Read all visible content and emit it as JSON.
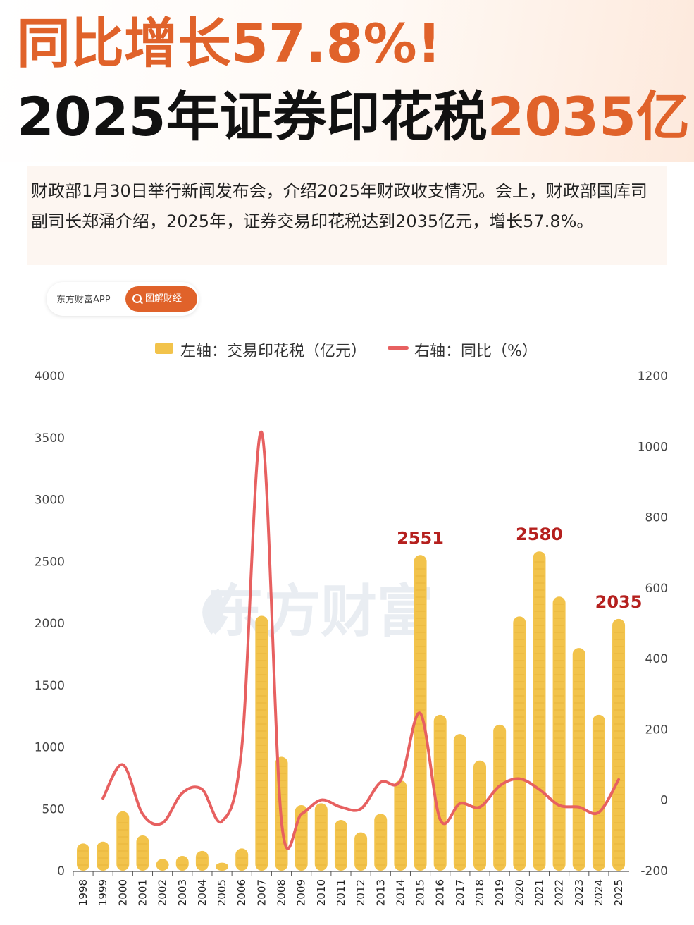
{
  "header": {
    "title_line1": "同比增长57.8%!",
    "title_line2_main": "2025年证券印花税",
    "title_line2_highlight": "2035亿"
  },
  "summary": {
    "text": "财政部1月30日举行新闻发布会，介绍2025年财政收支情况。会上，财政部国库司副司长郑涌介绍，2025年，证券交易印花税达到2035亿元，增长57.8%。"
  },
  "source": {
    "name": "东方财富APP",
    "button_label": "图解财经",
    "button_icon": "search-icon"
  },
  "watermark": {
    "text": "东方财富"
  },
  "colors": {
    "accent": "#e0622a",
    "bar": "#f2c34b",
    "line": "#e76060",
    "data_label": "#b5201e"
  },
  "chart_data": {
    "type": "bar+line",
    "categories": [
      "1998",
      "1999",
      "2000",
      "2001",
      "2002",
      "2003",
      "2004",
      "2005",
      "2006",
      "2007",
      "2008",
      "2009",
      "2010",
      "2011",
      "2012",
      "2013",
      "2014",
      "2015",
      "2016",
      "2017",
      "2018",
      "2019",
      "2020",
      "2021",
      "2022",
      "2023",
      "2024",
      "2025"
    ],
    "series": [
      {
        "name": "左轴：交易印花税（亿元）",
        "type": "bar",
        "axis": "left",
        "values": [
          220,
          235,
          480,
          285,
          95,
          120,
          160,
          65,
          180,
          2060,
          920,
          530,
          545,
          410,
          310,
          460,
          730,
          2551,
          1260,
          1105,
          890,
          1180,
          2055,
          2580,
          2215,
          1800,
          1260,
          2035
        ]
      },
      {
        "name": "右轴：同比（%）",
        "type": "line",
        "axis": "right",
        "values": [
          null,
          5,
          100,
          -40,
          -65,
          20,
          30,
          -60,
          150,
          1040,
          -60,
          -40,
          0,
          -20,
          -25,
          50,
          55,
          245,
          -55,
          -10,
          -20,
          40,
          60,
          30,
          -15,
          -20,
          -35,
          57.8
        ]
      }
    ],
    "data_labels": [
      {
        "category": "2015",
        "text": "2551"
      },
      {
        "category": "2021",
        "text": "2580"
      },
      {
        "category": "2025",
        "text": "2035"
      }
    ],
    "left_axis": {
      "min": 0,
      "max": 4000,
      "ticks": [
        "0",
        "500",
        "1000",
        "1500",
        "2000",
        "2500",
        "3000",
        "3500",
        "4000"
      ]
    },
    "right_axis": {
      "min": -200,
      "max": 1200,
      "ticks": [
        "-200",
        "0",
        "200",
        "400",
        "600",
        "800",
        "1000",
        "1200"
      ]
    },
    "legend_position": "top-center",
    "grid": false
  }
}
